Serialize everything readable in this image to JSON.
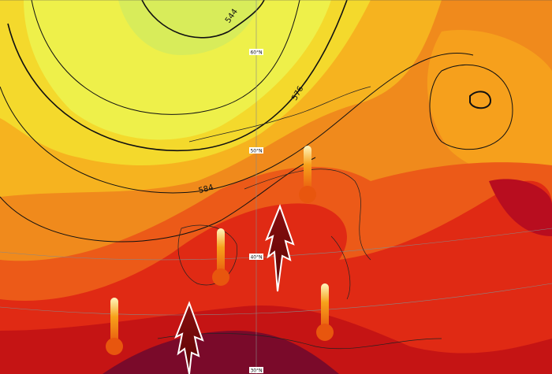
{
  "contour_labels": [
    544,
    576,
    584
  ],
  "latitude_labels": [
    "60°N",
    "50°N",
    "40°N",
    "30°N"
  ]
}
